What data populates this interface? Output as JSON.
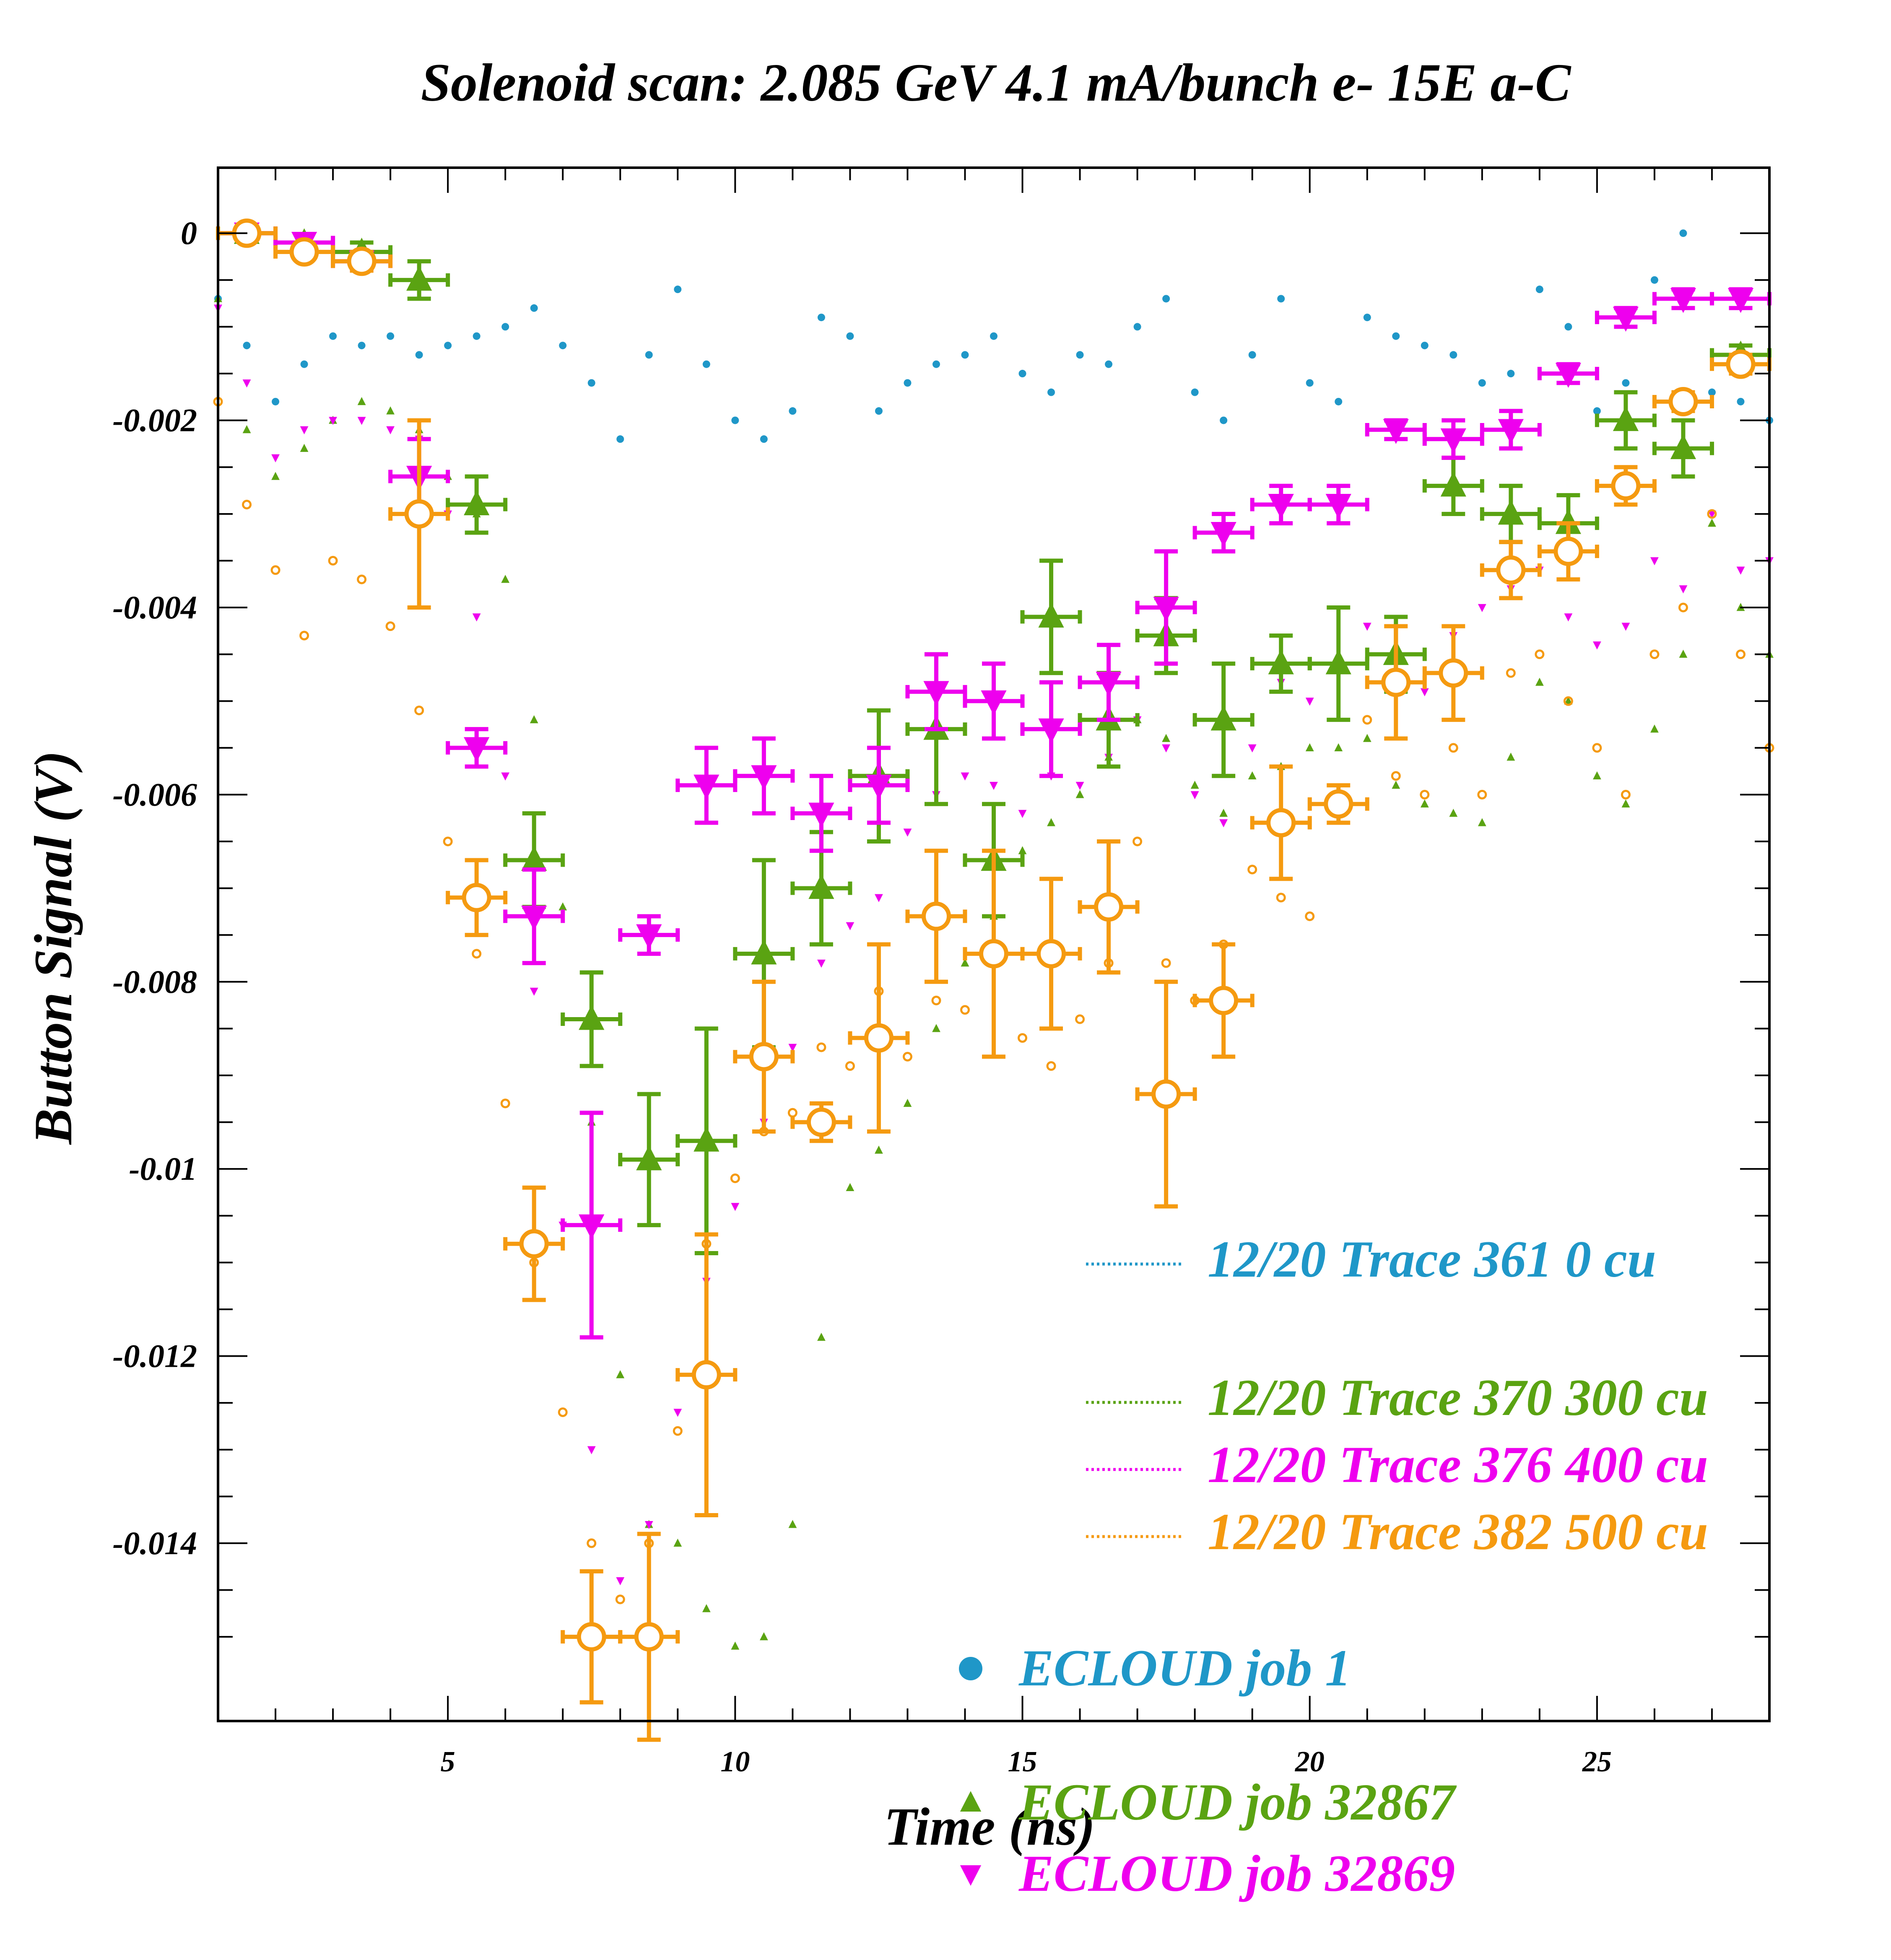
{
  "chart_data": {
    "type": "scatter",
    "title": "Solenoid scan: 2.085 GeV 4.1 mA/bunch e- 15E a-C",
    "xlabel": "Time (ns)",
    "ylabel": "Button Signal (V)",
    "xlim": [
      1,
      28
    ],
    "ylim": [
      -0.0159,
      0.0007
    ],
    "xticks": [
      5,
      10,
      15,
      20,
      25
    ],
    "xtick_labels": [
      "5",
      "10",
      "15",
      "20",
      "25"
    ],
    "yticks": [
      0,
      -0.002,
      -0.004,
      -0.006,
      -0.008,
      -0.01,
      -0.012,
      -0.014
    ],
    "ytick_labels": [
      "0",
      "-0.002",
      "-0.004",
      "-0.006",
      "-0.008",
      "-0.01",
      "-0.012",
      "-0.014"
    ],
    "grid": false,
    "legend_position": "bottom-right",
    "trace_series": [
      {
        "name": "12/20 Trace 361  0 cu",
        "color": "#1f97c8",
        "x": [
          1.0,
          1.5,
          2.0,
          2.5,
          3.0,
          3.5,
          4.0,
          4.5,
          5.0,
          5.5,
          6.0,
          6.5,
          7.0,
          7.5,
          8.0,
          8.5,
          9.0,
          9.5,
          10.0,
          10.5,
          11.0,
          11.5,
          12.0,
          12.5,
          13.0,
          13.5,
          14.0,
          14.5,
          15.0,
          15.5,
          16.0,
          16.5,
          17.0,
          17.5,
          18.0,
          18.5,
          19.0,
          19.5,
          20.0,
          20.5,
          21.0,
          21.5,
          22.0,
          22.5,
          23.0,
          23.5,
          24.0,
          24.5,
          25.0,
          25.5,
          26.0,
          26.5,
          27.0,
          27.5,
          28.0
        ],
        "y": [
          -0.0007,
          -0.0012,
          -0.0018,
          -0.0014,
          -0.0011,
          -0.0012,
          -0.0011,
          -0.0013,
          -0.0012,
          -0.0011,
          -0.001,
          -0.0008,
          -0.0012,
          -0.0016,
          -0.0022,
          -0.0013,
          -0.0006,
          -0.0014,
          -0.002,
          -0.0022,
          -0.0019,
          -0.0009,
          -0.0011,
          -0.0019,
          -0.0016,
          -0.0014,
          -0.0013,
          -0.0011,
          -0.0015,
          -0.0017,
          -0.0013,
          -0.0014,
          -0.001,
          -0.0007,
          -0.0017,
          -0.002,
          -0.0013,
          -0.0007,
          -0.0016,
          -0.0018,
          -0.0009,
          -0.0011,
          -0.0012,
          -0.0013,
          -0.0016,
          -0.0015,
          -0.0006,
          -0.001,
          -0.0019,
          -0.0016,
          -0.0005,
          0.0,
          -0.0017,
          -0.0018,
          -0.002
        ]
      },
      {
        "name": "12/20 Trace 370  300 cu",
        "color": "#5aa312",
        "x": [
          1.0,
          1.5,
          2.0,
          2.5,
          3.0,
          3.5,
          4.0,
          4.5,
          5.0,
          5.5,
          6.0,
          6.5,
          7.0,
          7.5,
          8.0,
          8.5,
          9.0,
          9.5,
          10.0,
          10.5,
          11.0,
          11.5,
          12.0,
          12.5,
          13.0,
          13.5,
          14.0,
          14.5,
          15.0,
          15.5,
          16.0,
          16.5,
          17.0,
          17.5,
          18.0,
          18.5,
          19.0,
          19.5,
          20.0,
          20.5,
          21.0,
          21.5,
          22.0,
          22.5,
          23.0,
          23.5,
          24.0,
          24.5,
          25.0,
          25.5,
          26.0,
          26.5,
          27.0,
          27.5,
          28.0
        ],
        "y": [
          -0.0007,
          -0.0021,
          -0.0026,
          -0.0023,
          -0.002,
          -0.0018,
          -0.0019,
          -0.0021,
          -0.0026,
          -0.003,
          -0.0037,
          -0.0052,
          -0.0072,
          -0.0095,
          -0.0122,
          -0.0138,
          -0.014,
          -0.0147,
          -0.0151,
          -0.015,
          -0.0138,
          -0.0118,
          -0.0102,
          -0.0098,
          -0.0093,
          -0.0085,
          -0.0078,
          -0.0073,
          -0.0066,
          -0.0063,
          -0.006,
          -0.0056,
          -0.0052,
          -0.0054,
          -0.0059,
          -0.0062,
          -0.0058,
          -0.0057,
          -0.0055,
          -0.0055,
          -0.0054,
          -0.0059,
          -0.0061,
          -0.0062,
          -0.0063,
          -0.0056,
          -0.0048,
          -0.005,
          -0.0058,
          -0.0061,
          -0.0053,
          -0.0045,
          -0.0031,
          -0.004,
          -0.0045
        ]
      },
      {
        "name": "12/20 Trace 376  400 cu",
        "color": "#ee00ee",
        "x": [
          1.0,
          1.5,
          2.0,
          2.5,
          3.0,
          3.5,
          4.0,
          4.5,
          5.0,
          5.5,
          6.0,
          6.5,
          7.0,
          7.5,
          8.0,
          8.5,
          9.0,
          9.5,
          10.0,
          10.5,
          11.0,
          11.5,
          12.0,
          12.5,
          13.0,
          13.5,
          14.0,
          14.5,
          15.0,
          15.5,
          16.0,
          16.5,
          17.0,
          17.5,
          18.0,
          18.5,
          19.0,
          19.5,
          20.0,
          20.5,
          21.0,
          21.5,
          22.0,
          22.5,
          23.0,
          23.5,
          24.0,
          24.5,
          25.0,
          25.5,
          26.0,
          26.5,
          27.0,
          27.5,
          28.0
        ],
        "y": [
          -0.0008,
          -0.0016,
          -0.0024,
          -0.0021,
          -0.002,
          -0.002,
          -0.0021,
          -0.0022,
          -0.003,
          -0.0041,
          -0.0058,
          -0.0081,
          -0.0106,
          -0.013,
          -0.0144,
          -0.0138,
          -0.0126,
          -0.0112,
          -0.0104,
          -0.0095,
          -0.0087,
          -0.0078,
          -0.0074,
          -0.0071,
          -0.0064,
          -0.006,
          -0.0058,
          -0.0059,
          -0.0062,
          -0.0058,
          -0.0059,
          -0.0056,
          -0.0052,
          -0.0055,
          -0.006,
          -0.0063,
          -0.0055,
          -0.0048,
          -0.005,
          -0.0046,
          -0.0042,
          -0.0046,
          -0.0049,
          -0.0043,
          -0.004,
          -0.0038,
          -0.0036,
          -0.0041,
          -0.0044,
          -0.0042,
          -0.0035,
          -0.0038,
          -0.003,
          -0.0036,
          -0.0035
        ]
      },
      {
        "name": "12/20 Trace 382  500 cu",
        "color": "#f59a10",
        "x": [
          1.0,
          1.5,
          2.0,
          2.5,
          3.0,
          3.5,
          4.0,
          4.5,
          5.0,
          5.5,
          6.0,
          6.5,
          7.0,
          7.5,
          8.0,
          8.5,
          9.0,
          9.5,
          10.0,
          10.5,
          11.0,
          11.5,
          12.0,
          12.5,
          13.0,
          13.5,
          14.0,
          14.5,
          15.0,
          15.5,
          16.0,
          16.5,
          17.0,
          17.5,
          18.0,
          18.5,
          19.0,
          19.5,
          20.0,
          20.5,
          21.0,
          21.5,
          22.0,
          22.5,
          23.0,
          23.5,
          24.0,
          24.5,
          25.0,
          25.5,
          26.0,
          26.5,
          27.0,
          27.5,
          28.0
        ],
        "y": [
          -0.0018,
          -0.0029,
          -0.0036,
          -0.0043,
          -0.0035,
          -0.0037,
          -0.0042,
          -0.0051,
          -0.0065,
          -0.0077,
          -0.0093,
          -0.011,
          -0.0126,
          -0.014,
          -0.0146,
          -0.014,
          -0.0128,
          -0.0108,
          -0.0101,
          -0.0096,
          -0.0094,
          -0.0087,
          -0.0089,
          -0.0081,
          -0.0088,
          -0.0082,
          -0.0083,
          -0.0076,
          -0.0086,
          -0.0089,
          -0.0084,
          -0.0078,
          -0.0065,
          -0.0078,
          -0.0082,
          -0.0076,
          -0.0068,
          -0.0071,
          -0.0073,
          -0.0062,
          -0.0052,
          -0.0058,
          -0.006,
          -0.0055,
          -0.006,
          -0.0047,
          -0.0045,
          -0.005,
          -0.0055,
          -0.006,
          -0.0045,
          -0.004,
          -0.003,
          -0.0045,
          -0.0055
        ]
      }
    ],
    "ecloud_series": [
      {
        "name": "ECLOUD job 1",
        "color": "#1f97c8",
        "marker": "circle",
        "x": [],
        "y": []
      },
      {
        "name": "ECLOUD job 32867",
        "color": "#5aa312",
        "marker": "triangle-up",
        "x": [
          1.5,
          2.5,
          3.5,
          4.5,
          5.5,
          6.5,
          7.5,
          8.5,
          9.5,
          10.5,
          11.5,
          12.5,
          13.5,
          14.5,
          15.5,
          16.5,
          17.5,
          18.5,
          19.5,
          20.5,
          21.5,
          22.5,
          23.5,
          24.5,
          25.5,
          26.5,
          27.5
        ],
        "y": [
          0.0,
          -0.0001,
          -0.0002,
          -0.0005,
          -0.0029,
          -0.0067,
          -0.0084,
          -0.0099,
          -0.0097,
          -0.0077,
          -0.007,
          -0.0058,
          -0.0053,
          -0.0067,
          -0.0041,
          -0.0052,
          -0.0043,
          -0.0052,
          -0.0046,
          -0.0046,
          -0.0045,
          -0.0027,
          -0.003,
          -0.0031,
          -0.002,
          -0.0023,
          -0.0013
        ],
        "yerr": [
          0.0,
          0.0,
          0.0001,
          0.0002,
          0.0003,
          0.0005,
          0.0005,
          0.0007,
          0.0012,
          0.001,
          0.0006,
          0.0007,
          0.0008,
          0.0006,
          0.0006,
          0.0005,
          0.0004,
          0.0006,
          0.0003,
          0.0006,
          0.0004,
          0.0003,
          0.0003,
          0.0003,
          0.0003,
          0.0003,
          0.0001
        ]
      },
      {
        "name": "ECLOUD job 32869",
        "color": "#ee00ee",
        "marker": "triangle-down",
        "x": [
          1.5,
          2.5,
          3.5,
          4.5,
          5.5,
          6.5,
          7.5,
          8.5,
          9.5,
          10.5,
          11.5,
          12.5,
          13.5,
          14.5,
          15.5,
          16.5,
          17.5,
          18.5,
          19.5,
          20.5,
          21.5,
          22.5,
          23.5,
          24.5,
          25.5,
          26.5,
          27.5
        ],
        "y": [
          0.0,
          -0.0001,
          -0.0003,
          -0.0026,
          -0.0055,
          -0.0073,
          -0.0106,
          -0.0075,
          -0.0059,
          -0.0058,
          -0.0062,
          -0.0059,
          -0.0049,
          -0.005,
          -0.0053,
          -0.0048,
          -0.004,
          -0.0032,
          -0.0029,
          -0.0029,
          -0.0021,
          -0.0022,
          -0.0021,
          -0.0015,
          -0.0009,
          -0.0007,
          -0.0007
        ],
        "yerr": [
          0.0,
          0.0,
          0.0001,
          0.0004,
          0.0002,
          0.0005,
          0.0012,
          0.0002,
          0.0004,
          0.0004,
          0.0004,
          0.0004,
          0.0004,
          0.0004,
          0.0005,
          0.0004,
          0.0006,
          0.0002,
          0.0002,
          0.0002,
          0.0001,
          0.0002,
          0.0002,
          0.0001,
          0.0001,
          0.0001,
          0.0001
        ]
      },
      {
        "name": "",
        "color": "#f59a10",
        "marker": "open-circle",
        "x": [
          1.5,
          2.5,
          3.5,
          4.5,
          5.5,
          6.5,
          7.5,
          8.5,
          9.5,
          10.5,
          11.5,
          12.5,
          13.5,
          14.5,
          15.5,
          16.5,
          17.5,
          18.5,
          19.5,
          20.5,
          21.5,
          22.5,
          23.5,
          24.5,
          25.5,
          26.5,
          27.5
        ],
        "y": [
          0.0,
          -0.0002,
          -0.0003,
          -0.003,
          -0.0071,
          -0.0108,
          -0.015,
          -0.015,
          -0.0122,
          -0.0088,
          -0.0095,
          -0.0086,
          -0.0073,
          -0.0077,
          -0.0077,
          -0.0072,
          -0.0092,
          -0.0082,
          -0.0063,
          -0.0061,
          -0.0048,
          -0.0047,
          -0.0036,
          -0.0034,
          -0.0027,
          -0.0018,
          -0.0014
        ],
        "yerr": [
          0.0,
          0.0,
          0.0001,
          0.001,
          0.0004,
          0.0006,
          0.0007,
          0.0011,
          0.0015,
          0.0008,
          0.0002,
          0.001,
          0.0007,
          0.0011,
          0.0008,
          0.0007,
          0.0012,
          0.0006,
          0.0006,
          0.0002,
          0.0006,
          0.0005,
          0.0003,
          0.0003,
          0.0002,
          0.0001,
          0.0001
        ]
      }
    ]
  }
}
